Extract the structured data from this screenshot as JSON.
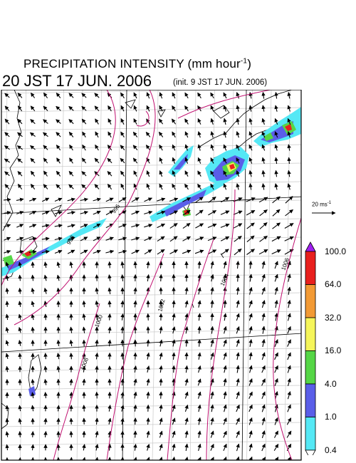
{
  "title": {
    "main": "PRECIPITATION INTENSITY (mm hour",
    "main_exp": "-1",
    "main_close": ")",
    "date": "20 JST 17 JUN. 2006",
    "init": "(init. 9 JST 17 JUN. 2006)"
  },
  "reference_vector": {
    "value": "20 ms",
    "exp": "-1"
  },
  "colorbar": {
    "ticks": [
      "100.0",
      "64.0",
      "32.0",
      "16.0",
      "4.0",
      "1.0",
      "0.4"
    ],
    "colors": [
      "#a020f0",
      "#e8201e",
      "#f29a35",
      "#f5f55a",
      "#55d646",
      "#5a5ee8",
      "#55e8f5",
      "#ffffff"
    ],
    "color_meaning": [
      "> 100.0",
      "64.0-100.0",
      "32.0-64.0",
      "16.0-32.0",
      "4.0-16.0",
      "1.0-4.0",
      "0.4-1.0",
      "< 0.4"
    ]
  },
  "isobars": {
    "color": "#c01070",
    "labels": [
      "996",
      "998",
      "1000",
      "1002",
      "1004",
      "1006",
      "1008"
    ]
  }
}
